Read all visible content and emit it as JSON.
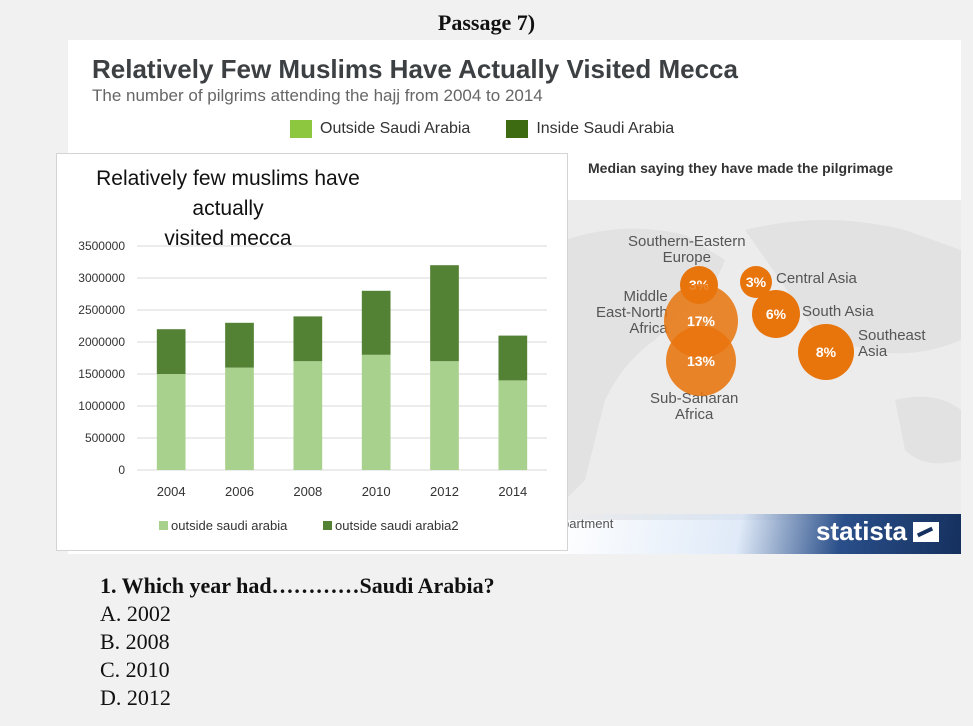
{
  "header": {
    "passage_label": "Passage 7)"
  },
  "statista": {
    "title": "Relatively Few Muslims Have Actually Visited Mecca",
    "subtitle": "The number of pilgrims attending the hajj from 2004 to 2014",
    "legend": [
      {
        "label": "Outside Saudi Arabia",
        "color": "#8dc63f"
      },
      {
        "label": "Inside Saudi Arabia",
        "color": "#3d6b12"
      }
    ],
    "map_title": "Median saying they have made the pilgrimage",
    "source_fragment": "partment",
    "logo": "statista",
    "regions": [
      {
        "label": "Southern-Eastern Europe",
        "line1": "Southern-Eastern",
        "line2": "Europe",
        "value": "3%"
      },
      {
        "label": "Central Asia",
        "value": "3%"
      },
      {
        "label": "Middle East-North Africa",
        "line1": "Middle",
        "line2": "East-North",
        "line3": "Africa",
        "value": "17%"
      },
      {
        "label": "South Asia",
        "value": "6%"
      },
      {
        "label": "Southeast Asia",
        "line1": "Southeast",
        "line2": "Asia",
        "value": "8%"
      },
      {
        "label": "Sub-Saharan Africa",
        "line1": "Sub-Saharan",
        "line2": "Africa",
        "value": "13%"
      }
    ],
    "bubble_color": "#e8740c"
  },
  "chart_data": {
    "type": "bar",
    "stacked": true,
    "title": "Relatively few muslims have actually visited mecca",
    "title_line1": "Relatively few muslims have actually",
    "title_line2": "visited mecca",
    "categories": [
      "2004",
      "2006",
      "2008",
      "2010",
      "2012",
      "2014"
    ],
    "series": [
      {
        "name": "outside saudi arabia",
        "color": "#a9d18e",
        "values": [
          1500000,
          1600000,
          1700000,
          1800000,
          1700000,
          1400000
        ]
      },
      {
        "name": "outside saudi arabia2",
        "color": "#548235",
        "values": [
          700000,
          700000,
          700000,
          1000000,
          1500000,
          700000
        ]
      }
    ],
    "ylim": [
      0,
      3500000
    ],
    "yticks": [
      0,
      500000,
      1000000,
      1500000,
      2000000,
      2500000,
      3000000,
      3500000
    ],
    "grid": true,
    "legend_position": "bottom"
  },
  "question": {
    "text": "1. Which year had…………Saudi Arabia?",
    "options": [
      "A. 2002",
      "B. 2008",
      "C. 2010",
      "D. 2012"
    ]
  }
}
